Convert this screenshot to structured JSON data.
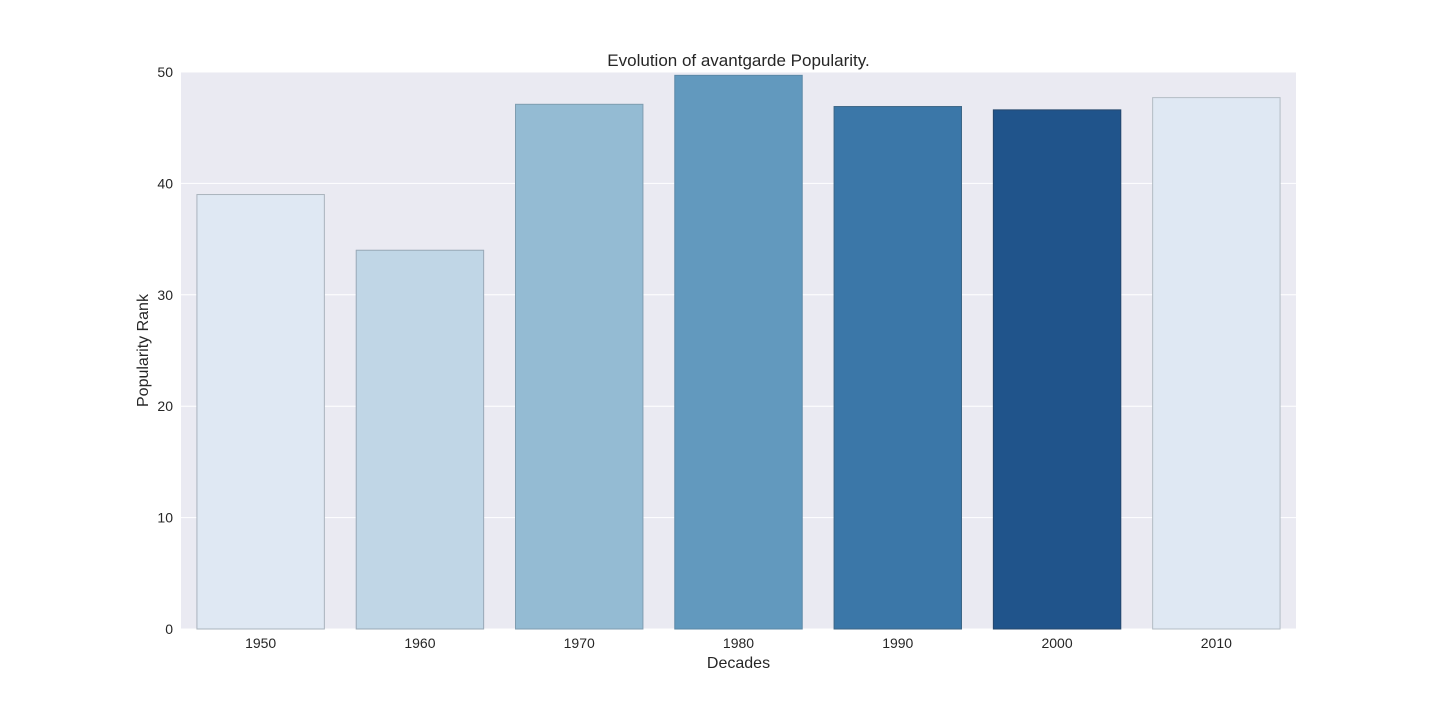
{
  "chart_data": {
    "type": "bar",
    "title": "Evolution of avantgarde Popularity.",
    "xlabel": "Decades",
    "ylabel": "Popularity Rank",
    "categories": [
      "1950",
      "1960",
      "1970",
      "1980",
      "1990",
      "2000",
      "2010"
    ],
    "values": [
      39,
      34,
      47.1,
      49.7,
      46.9,
      46.6,
      47.7
    ],
    "ylim": [
      0,
      50
    ],
    "yticks": [
      "0",
      "10",
      "20",
      "30",
      "40",
      "50"
    ],
    "grid": true,
    "legend": "none",
    "colors": {
      "plot_background": "#eaeaf2",
      "grid": "#ffffff",
      "bars": [
        "#dfe8f3",
        "#c0d6e6",
        "#94bbd3",
        "#6299be",
        "#3b77a8",
        "#20548b",
        "#dfe8f3"
      ],
      "edges": [
        "#a9b3bd",
        "#98a8b6",
        "#7f9db0",
        "#5a87a6",
        "#3c6686",
        "#24476d",
        "#b3bcc4"
      ]
    }
  }
}
